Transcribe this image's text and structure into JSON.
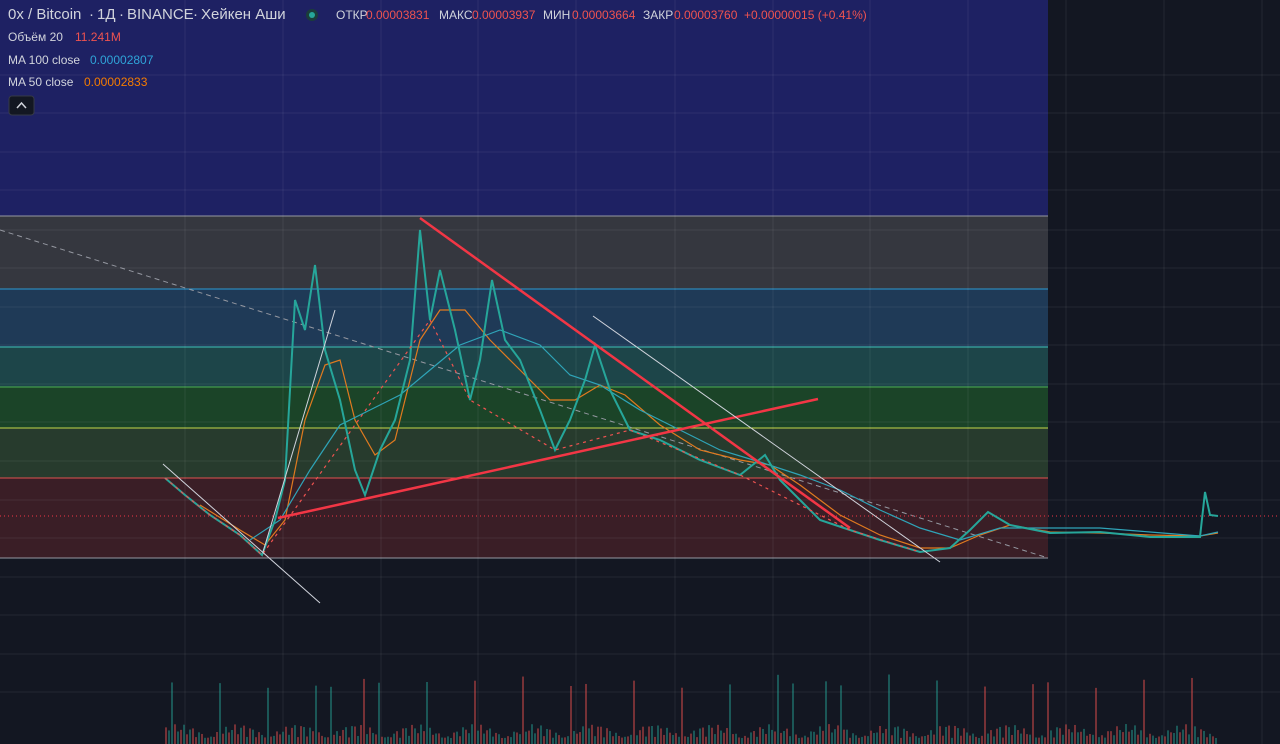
{
  "header": {
    "symbol": "0x / Bitcoin",
    "interval": "1Д",
    "exchange": "BINANCE",
    "chart_style": "Хейкен Аши",
    "ohlc": [
      {
        "label": "ОТКР",
        "value": "0.00003831"
      },
      {
        "label": "МАКС",
        "value": "0.00003937"
      },
      {
        "label": "МИН",
        "value": "0.00003664"
      },
      {
        "label": "ЗАКР",
        "value": "0.00003760"
      }
    ],
    "change": "+0.00000015 (+0.41%)"
  },
  "indicators": [
    {
      "name": "Объём 20",
      "value": "11.241M"
    },
    {
      "name": "MA 100 close",
      "value": "0.00002807"
    },
    {
      "name": "MA 50 close",
      "value": "0.00002833"
    }
  ]
}
